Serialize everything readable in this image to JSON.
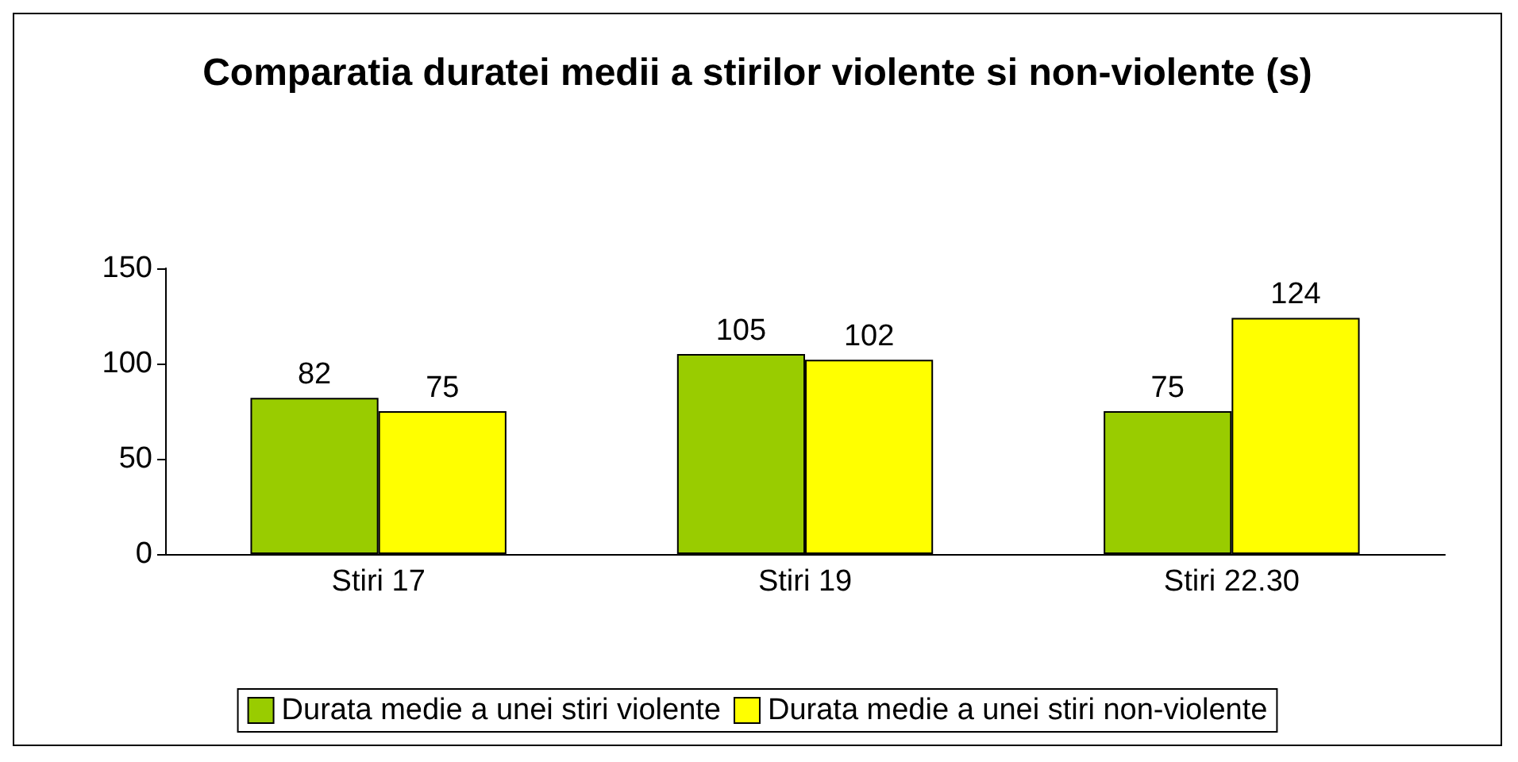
{
  "chart_data": {
    "type": "bar",
    "title": "Comparatia duratei medii a stirilor violente si non-violente (s)",
    "categories": [
      "Stiri 17",
      "Stiri 19",
      "Stiri 22.30"
    ],
    "series": [
      {
        "name": "Durata medie a unei stiri violente",
        "color": "#99cc00",
        "values": [
          82,
          105,
          75
        ]
      },
      {
        "name": "Durata medie a unei stiri non-violente",
        "color": "#ffff00",
        "values": [
          75,
          102,
          124
        ]
      }
    ],
    "ylim": [
      0,
      150
    ],
    "yticks": [
      0,
      50,
      100,
      150
    ],
    "grid": false,
    "legend": "bottom",
    "data_labels": true
  }
}
